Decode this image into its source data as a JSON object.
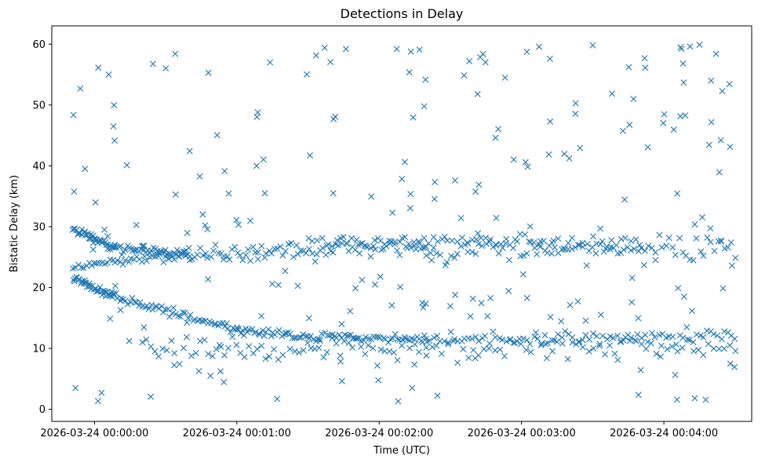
{
  "chart_data": {
    "type": "scatter",
    "title": "Detections in Delay",
    "xlabel": "Time (UTC)",
    "ylabel": "Bistatic Delay (km)",
    "x_unit": "seconds",
    "x_origin": "2026-03-24 00:00:00",
    "x_ticks": [
      {
        "t": 0,
        "label": "2026-03-24 00:00:00"
      },
      {
        "t": 60,
        "label": "2026-03-24 00:01:00"
      },
      {
        "t": 120,
        "label": "2026-03-24 00:02:00"
      },
      {
        "t": 180,
        "label": "2026-03-24 00:03:00"
      },
      {
        "t": 240,
        "label": "2026-03-24 00:04:00"
      }
    ],
    "y_ticks": [
      0,
      10,
      20,
      30,
      40,
      50,
      60
    ],
    "xlim": [
      -18,
      277
    ],
    "ylim": [
      -2,
      63
    ],
    "grid": false,
    "marker": "x",
    "color": "#1f77b4",
    "tracks": [
      {
        "name": "track-a",
        "t_start": -9,
        "t_end": 8,
        "y_start": 29.5,
        "y_end": 26.5,
        "n": 40,
        "jitter": 0.3
      },
      {
        "name": "track-b",
        "t_start": 8,
        "t_end": 40,
        "y_start": 26.5,
        "y_end": 25.5,
        "n": 45,
        "jitter": 0.4
      },
      {
        "name": "track-c",
        "t_start": -9,
        "t_end": 8,
        "y_start": 21.5,
        "y_end": 18.5,
        "n": 40,
        "jitter": 0.3
      },
      {
        "name": "track-d",
        "t_start": 8,
        "t_end": 60,
        "y_start": 18.5,
        "y_end": 13.0,
        "n": 60,
        "jitter": 0.4
      },
      {
        "name": "track-e",
        "t_start": 60,
        "t_end": 95,
        "y_start": 13.0,
        "y_end": 11.5,
        "n": 40,
        "jitter": 0.3
      },
      {
        "name": "track-f",
        "t_start": 95,
        "t_end": 140,
        "y_start": 12.0,
        "y_end": 11.5,
        "n": 45,
        "jitter": 0.3
      },
      {
        "name": "track-g",
        "t_start": 140,
        "t_end": 270,
        "y_start": 11.5,
        "y_end": 12.0,
        "n": 90,
        "jitter": 0.6
      },
      {
        "name": "track-h",
        "t_start": -9,
        "t_end": 40,
        "y_start": 23.5,
        "y_end": 25.5,
        "n": 45,
        "jitter": 0.4
      },
      {
        "name": "track-i",
        "t_start": 40,
        "t_end": 140,
        "y_start": 25.0,
        "y_end": 27.0,
        "n": 90,
        "jitter": 0.8
      },
      {
        "name": "track-j",
        "t_start": 140,
        "t_end": 270,
        "y_start": 26.0,
        "y_end": 26.5,
        "n": 90,
        "jitter": 1.0
      },
      {
        "name": "track-k",
        "t_start": 20,
        "t_end": 140,
        "y_start": 10.0,
        "y_end": 10.0,
        "n": 70,
        "jitter": 1.0
      },
      {
        "name": "track-l",
        "t_start": 140,
        "t_end": 270,
        "y_start": 10.0,
        "y_end": 10.0,
        "n": 60,
        "jitter": 1.0
      },
      {
        "name": "track-m",
        "t_start": 90,
        "t_end": 230,
        "y_start": 27.5,
        "y_end": 27.5,
        "n": 70,
        "jitter": 0.6
      }
    ],
    "noise": {
      "t_min": -9,
      "t_max": 270,
      "y_min": 1,
      "y_max": 60,
      "n": 200
    },
    "extra_points": [
      {
        "t": -8,
        "y": 3.5
      },
      {
        "t": -6,
        "y": 52.7
      },
      {
        "t": -4,
        "y": 39.5
      },
      {
        "t": 3,
        "y": 2.7
      },
      {
        "t": 6,
        "y": 55.0
      },
      {
        "t": 8,
        "y": 46.5
      },
      {
        "t": 34,
        "y": 58.4
      },
      {
        "t": 48,
        "y": 55.3
      },
      {
        "t": 74,
        "y": 57.0
      },
      {
        "t": 97,
        "y": 59.4
      },
      {
        "t": 106,
        "y": 59.2
      },
      {
        "t": 128,
        "y": 1.3
      },
      {
        "t": 137,
        "y": 59.1
      },
      {
        "t": 158,
        "y": 57.2
      },
      {
        "t": 192,
        "y": 57.6
      },
      {
        "t": 210,
        "y": 59.8
      },
      {
        "t": 247,
        "y": 59.5
      },
      {
        "t": 251,
        "y": 59.6
      },
      {
        "t": 255,
        "y": 59.9
      },
      {
        "t": 262,
        "y": 58.4
      },
      {
        "t": 264,
        "y": 44.2
      },
      {
        "t": 268,
        "y": 7.5
      },
      {
        "t": 253,
        "y": 1.8
      },
      {
        "t": 77,
        "y": 1.7
      }
    ]
  }
}
